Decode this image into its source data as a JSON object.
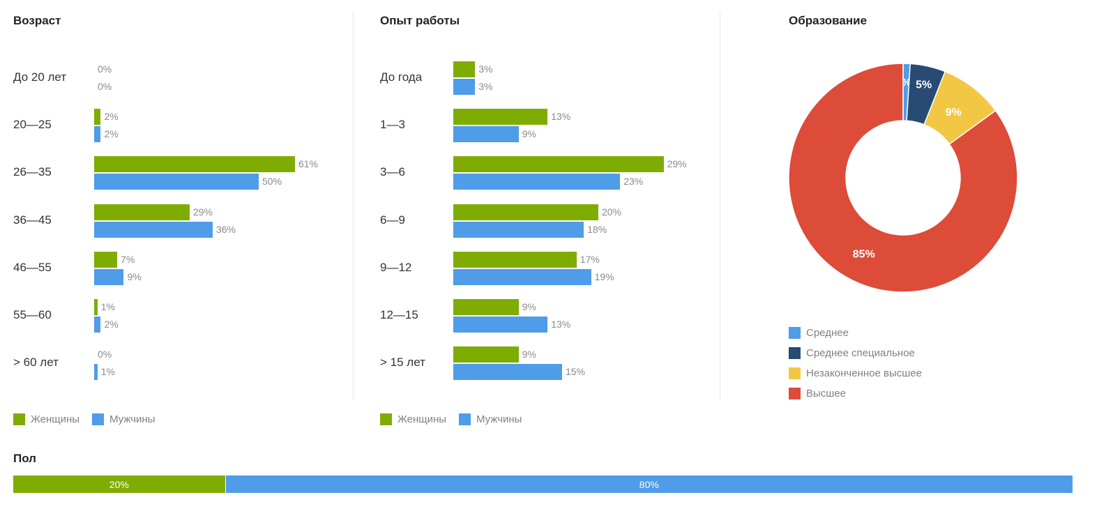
{
  "colors": {
    "women": "#7fac00",
    "men": "#4f9ce9",
    "srednee": "#4f9ce9",
    "srednee_special": "#274b72",
    "nezakonch": "#f2c744",
    "vysshee": "#dd4b39"
  },
  "age": {
    "title": "Возраст",
    "legend": [
      "Женщины",
      "Мужчины"
    ]
  },
  "experience": {
    "title": "Опыт работы",
    "legend": [
      "Женщины",
      "Мужчины"
    ]
  },
  "education": {
    "title": "Образование",
    "legend": [
      "Среднее",
      "Среднее специальное",
      "Незаконченное высшее",
      "Высшее"
    ]
  },
  "gender": {
    "title": "Пол"
  },
  "chart_data": [
    {
      "type": "bar",
      "orientation": "horizontal",
      "title": "Возраст",
      "categories": [
        "До 20 лет",
        "20—25",
        "26—35",
        "36—45",
        "46—55",
        "55—60",
        "> 60 лет"
      ],
      "series": [
        {
          "name": "Женщины",
          "values": [
            0,
            2,
            61,
            29,
            7,
            1,
            0
          ],
          "labels": [
            "0%",
            "2%",
            "61%",
            "29%",
            "7%",
            "1%",
            "0%"
          ]
        },
        {
          "name": "Мужчины",
          "values": [
            0,
            2,
            50,
            36,
            9,
            2,
            1
          ],
          "labels": [
            "0%",
            "2%",
            "50%",
            "36%",
            "9%",
            "2%",
            "1%"
          ]
        }
      ],
      "legend_position": "bottom-left",
      "grid": false
    },
    {
      "type": "bar",
      "orientation": "horizontal",
      "title": "Опыт работы",
      "categories": [
        "До года",
        "1—3",
        "3—6",
        "6—9",
        "9—12",
        "12—15",
        "> 15 лет"
      ],
      "series": [
        {
          "name": "Женщины",
          "values": [
            3,
            13,
            29,
            20,
            17,
            9,
            9
          ],
          "labels": [
            "3%",
            "13%",
            "29%",
            "20%",
            "17%",
            "9%",
            "9%"
          ]
        },
        {
          "name": "Мужчины",
          "values": [
            3,
            9,
            23,
            18,
            19,
            13,
            15
          ],
          "labels": [
            "3%",
            "9%",
            "23%",
            "18%",
            "19%",
            "13%",
            "15%"
          ]
        }
      ],
      "legend_position": "bottom-left",
      "grid": false
    },
    {
      "type": "pie",
      "style": "donut",
      "title": "Образование",
      "categories": [
        "Среднее",
        "Среднее специальное",
        "Незаконченное высшее",
        "Высшее"
      ],
      "values": [
        1,
        5,
        9,
        85
      ],
      "labels": [
        "1%",
        "5%",
        "9%",
        "85%"
      ],
      "legend_position": "bottom"
    },
    {
      "type": "bar",
      "orientation": "stacked-horizontal",
      "title": "Пол",
      "categories": [
        "Женщины",
        "Мужчины"
      ],
      "values": [
        20,
        80
      ],
      "labels": [
        "20%",
        "80%"
      ]
    }
  ]
}
